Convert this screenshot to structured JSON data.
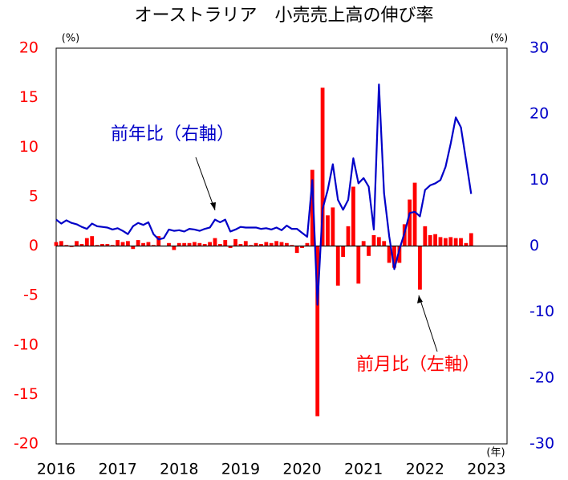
{
  "chart_data": {
    "type": "bar_line",
    "title": "オーストラリア　小売売上高の伸び率",
    "ylabel": "(%)",
    "y2label": "(%)",
    "xlabel": "(年)",
    "categories": [
      "2016",
      null,
      null,
      null,
      null,
      null,
      null,
      null,
      null,
      null,
      null,
      null,
      "2017",
      null,
      null,
      null,
      null,
      null,
      null,
      null,
      null,
      null,
      null,
      null,
      "2018",
      null,
      null,
      null,
      null,
      null,
      null,
      null,
      null,
      null,
      null,
      null,
      "2019",
      null,
      null,
      null,
      null,
      null,
      null,
      null,
      null,
      null,
      null,
      null,
      "2020",
      null,
      null,
      null,
      null,
      null,
      null,
      null,
      null,
      null,
      null,
      null,
      "2021",
      null,
      null,
      null,
      null,
      null,
      null,
      null,
      null,
      null,
      null,
      null,
      "2022",
      null,
      null,
      null,
      null,
      null,
      null,
      null,
      null,
      null,
      null,
      null,
      "2023",
      null,
      null,
      null
    ],
    "ylim": [
      -20,
      20
    ],
    "yticks": [
      -20,
      -15,
      -10,
      -5,
      0,
      5,
      10,
      15,
      20
    ],
    "y2lim": [
      -30,
      30
    ],
    "y2ticks": [
      -30,
      -20,
      -10,
      0,
      10,
      20,
      30
    ],
    "series": [
      {
        "name": "前月比（左軸）",
        "type": "bar",
        "axis": "y",
        "color": "#ff0000",
        "values": [
          0.4,
          0.5,
          0.1,
          -0.1,
          0.5,
          0.2,
          0.8,
          1.0,
          0.1,
          0.2,
          0.2,
          0.1,
          0.6,
          0.4,
          0.5,
          -0.3,
          0.6,
          0.3,
          0.4,
          0.1,
          1.0,
          0.0,
          0.3,
          -0.4,
          0.3,
          0.3,
          0.3,
          0.4,
          0.3,
          0.2,
          0.4,
          0.8,
          0.2,
          0.6,
          -0.2,
          0.7,
          0.2,
          0.5,
          0.1,
          0.3,
          0.2,
          0.4,
          0.3,
          0.5,
          0.4,
          0.3,
          0.1,
          -0.7,
          -0.2,
          0.3,
          7.7,
          -17.2,
          16.0,
          3.1,
          3.9,
          -4.0,
          -1.1,
          2.0,
          6.0,
          -3.8,
          0.5,
          -1.0,
          1.1,
          0.9,
          0.5,
          -1.7,
          -2.2,
          -1.7,
          2.2,
          4.7,
          6.4,
          -4.4,
          2.0,
          1.1,
          1.2,
          0.9,
          0.8,
          0.9,
          0.8,
          0.8,
          0.3,
          1.3,
          null,
          null,
          null,
          null,
          null,
          null
        ]
      },
      {
        "name": "前年比（右軸）",
        "type": "line",
        "axis": "y2",
        "color": "#0000c8",
        "values": [
          4.0,
          3.4,
          3.9,
          3.5,
          3.3,
          2.9,
          2.6,
          3.4,
          3.0,
          2.9,
          2.8,
          2.5,
          2.7,
          2.3,
          1.8,
          3.0,
          3.5,
          3.2,
          3.6,
          1.8,
          1.0,
          1.2,
          2.5,
          2.3,
          2.4,
          2.2,
          2.6,
          2.5,
          2.3,
          2.6,
          2.8,
          4.0,
          3.6,
          4.0,
          2.2,
          2.5,
          2.9,
          2.8,
          2.8,
          2.8,
          2.6,
          2.7,
          2.5,
          2.8,
          2.4,
          3.1,
          2.6,
          2.6,
          2.0,
          1.4,
          10.0,
          -8.9,
          5.6,
          8.5,
          12.4,
          7.0,
          5.5,
          7.0,
          13.3,
          9.5,
          10.3,
          9.0,
          2.5,
          24.5,
          8.0,
          1.5,
          -3.5,
          -0.5,
          2.0,
          5.0,
          5.2,
          4.5,
          8.5,
          9.2,
          9.5,
          10.0,
          12.0,
          15.5,
          19.5,
          18.0,
          13.0,
          7.9,
          null,
          null,
          null,
          null,
          null,
          null
        ]
      }
    ]
  }
}
